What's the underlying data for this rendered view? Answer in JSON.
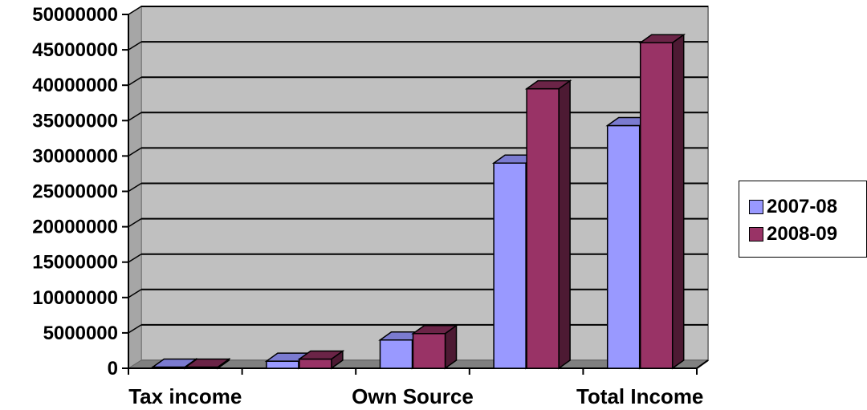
{
  "chart_data": {
    "type": "bar",
    "title": "",
    "xlabel": "",
    "ylabel": "",
    "ylim": [
      0,
      50000000
    ],
    "yticks": [
      "0",
      "5000000",
      "10000000",
      "15000000",
      "20000000",
      "25000000",
      "30000000",
      "35000000",
      "40000000",
      "45000000",
      "50000000"
    ],
    "xtick_labels": [
      "Tax income",
      "Own Source",
      "Total Income"
    ],
    "categories": [
      "Tax income",
      "",
      "Own Source",
      "",
      "Total Income"
    ],
    "series": [
      {
        "name": "2007-08",
        "color": "#9999ff",
        "side": "#6a6ab3",
        "top": "#7b7bd0",
        "values": [
          0,
          1000000,
          4000000,
          29000000,
          34300000
        ]
      },
      {
        "name": "2008-09",
        "color": "#993366",
        "side": "#4d1a33",
        "top": "#6b2447",
        "values": [
          0,
          1300000,
          4900000,
          39500000,
          46000000
        ]
      }
    ],
    "grid": true,
    "legend_position": "right",
    "plot_background": "#c0c0c0"
  }
}
